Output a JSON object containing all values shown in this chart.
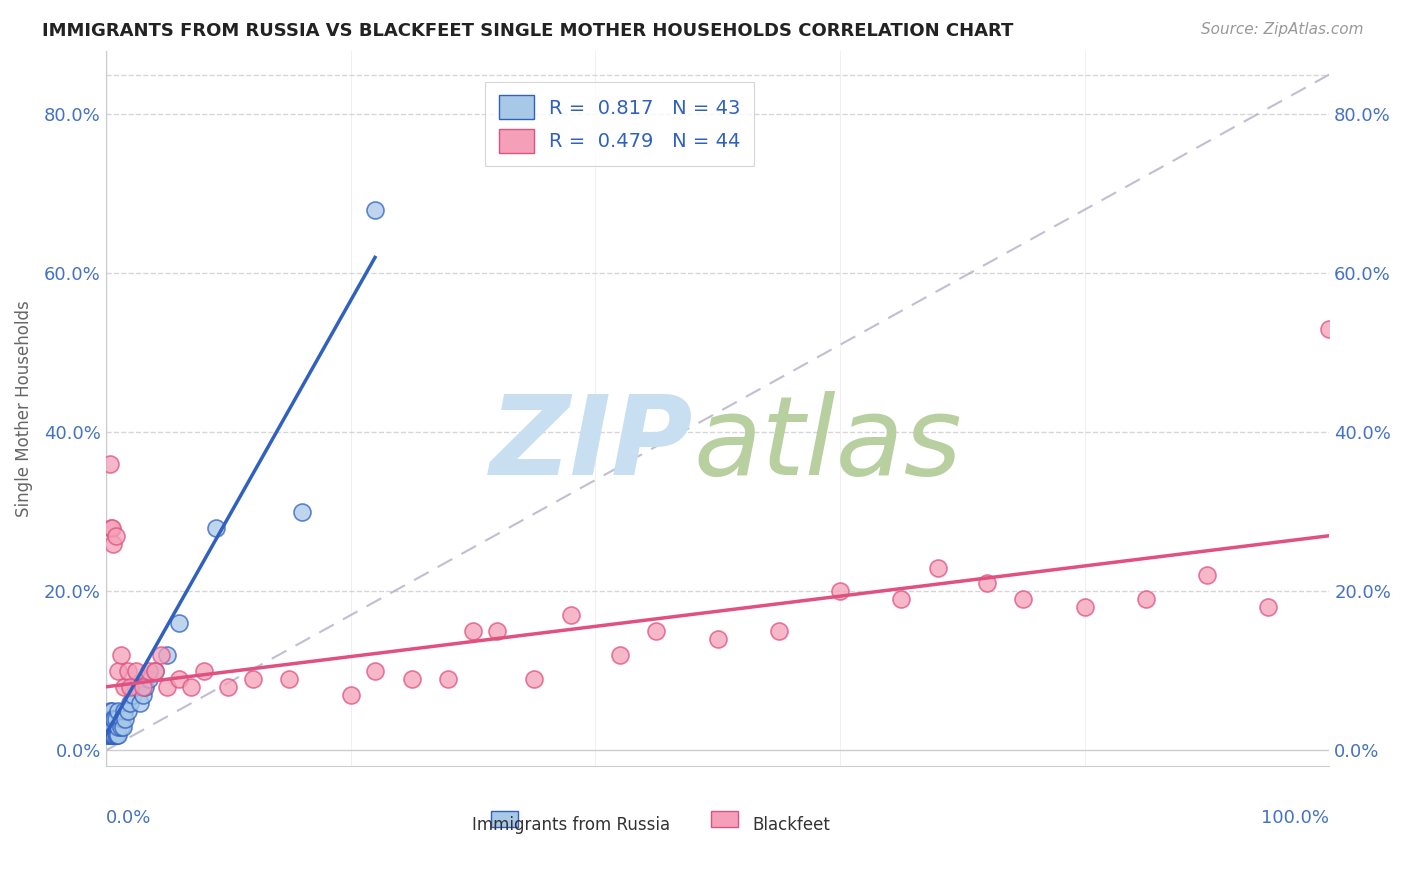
{
  "title": "IMMIGRANTS FROM RUSSIA VS BLACKFEET SINGLE MOTHER HOUSEHOLDS CORRELATION CHART",
  "source": "Source: ZipAtlas.com",
  "ylabel": "Single Mother Households",
  "xlim": [
    0.0,
    1.0
  ],
  "ylim": [
    -0.02,
    0.88
  ],
  "yticks": [
    0.0,
    0.2,
    0.4,
    0.6,
    0.8
  ],
  "ytick_labels": [
    "0.0%",
    "20.0%",
    "40.0%",
    "60.0%",
    "80.0%"
  ],
  "legend_label1": "Immigrants from Russia",
  "legend_label2": "Blackfeet",
  "blue_color": "#a8c8e8",
  "pink_color": "#f4a0b8",
  "blue_line_color": "#3060c0",
  "pink_line_color": "#e05080",
  "blue_scatter_x": [
    0.001,
    0.001,
    0.001,
    0.002,
    0.002,
    0.002,
    0.003,
    0.003,
    0.003,
    0.004,
    0.004,
    0.005,
    0.005,
    0.005,
    0.006,
    0.006,
    0.007,
    0.007,
    0.008,
    0.008,
    0.009,
    0.01,
    0.01,
    0.01,
    0.012,
    0.013,
    0.014,
    0.015,
    0.016,
    0.018,
    0.02,
    0.022,
    0.025,
    0.028,
    0.03,
    0.032,
    0.035,
    0.04,
    0.05,
    0.06,
    0.09,
    0.16,
    0.22
  ],
  "blue_scatter_y": [
    0.02,
    0.03,
    0.04,
    0.02,
    0.03,
    0.04,
    0.02,
    0.03,
    0.05,
    0.02,
    0.04,
    0.02,
    0.03,
    0.05,
    0.02,
    0.04,
    0.02,
    0.04,
    0.02,
    0.04,
    0.02,
    0.02,
    0.03,
    0.05,
    0.03,
    0.04,
    0.03,
    0.05,
    0.04,
    0.05,
    0.06,
    0.07,
    0.08,
    0.06,
    0.07,
    0.08,
    0.09,
    0.1,
    0.12,
    0.16,
    0.28,
    0.3,
    0.68
  ],
  "pink_scatter_x": [
    0.003,
    0.004,
    0.005,
    0.006,
    0.008,
    0.01,
    0.012,
    0.015,
    0.018,
    0.02,
    0.025,
    0.03,
    0.035,
    0.04,
    0.045,
    0.05,
    0.06,
    0.07,
    0.08,
    0.1,
    0.15,
    0.2,
    0.25,
    0.3,
    0.35,
    0.38,
    0.42,
    0.45,
    0.5,
    0.55,
    0.6,
    0.65,
    0.68,
    0.72,
    0.75,
    0.8,
    0.85,
    0.9,
    0.95,
    1.0,
    0.32,
    0.28,
    0.22,
    0.12
  ],
  "pink_scatter_y": [
    0.36,
    0.28,
    0.28,
    0.26,
    0.27,
    0.1,
    0.12,
    0.08,
    0.1,
    0.08,
    0.1,
    0.08,
    0.1,
    0.1,
    0.12,
    0.08,
    0.09,
    0.08,
    0.1,
    0.08,
    0.09,
    0.07,
    0.09,
    0.15,
    0.09,
    0.17,
    0.12,
    0.15,
    0.14,
    0.15,
    0.2,
    0.19,
    0.23,
    0.21,
    0.19,
    0.18,
    0.19,
    0.22,
    0.18,
    0.53,
    0.15,
    0.09,
    0.1,
    0.09
  ],
  "blue_line_x": [
    0.0,
    0.22
  ],
  "blue_line_y": [
    0.02,
    0.62
  ],
  "pink_line_x": [
    0.0,
    1.0
  ],
  "pink_line_y": [
    0.08,
    0.27
  ],
  "diag_line_x": [
    0.0,
    1.0
  ],
  "diag_line_y": [
    0.0,
    0.85
  ]
}
